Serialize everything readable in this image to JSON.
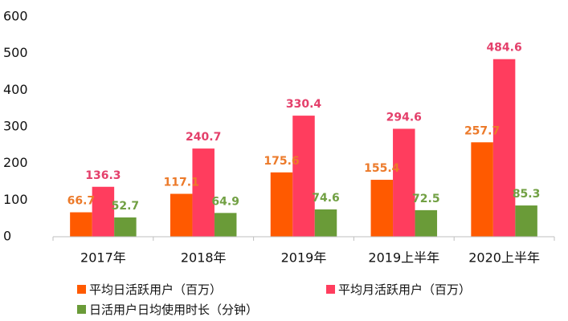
{
  "chart_data": {
    "type": "bar",
    "categories": [
      "2017年",
      "2018年",
      "2019年",
      "2019上半年",
      "2020上半年"
    ],
    "ylim": [
      0,
      600
    ],
    "yticks": [
      0,
      100,
      200,
      300,
      400,
      500,
      600
    ],
    "grid": false,
    "legend_position": "bottom-left",
    "series": [
      {
        "name": "平均日活跃用户（百万）",
        "color": "#ff5a00",
        "label_color": "#ec7a2a",
        "values": [
          66.7,
          117.1,
          175.6,
          155.4,
          257.7
        ]
      },
      {
        "name": "平均月活跃用户（百万）",
        "color": "#ff3d5e",
        "label_color": "#e4406b",
        "values": [
          136.3,
          240.7,
          330.4,
          294.6,
          484.6
        ]
      },
      {
        "name": "日活用户日均使用时长（分钟）",
        "color": "#6a9b38",
        "label_color": "#71a043",
        "values": [
          52.7,
          64.9,
          74.6,
          72.5,
          85.3
        ]
      }
    ]
  }
}
